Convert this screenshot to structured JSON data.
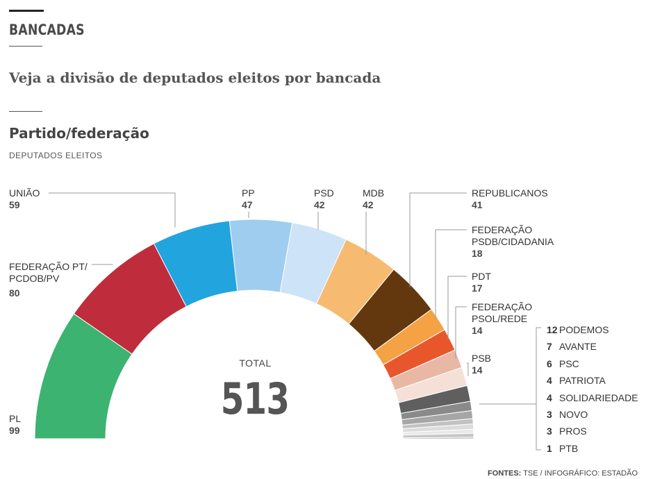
{
  "header": {
    "section_title": "BANCADAS",
    "subtitle": "Veja a divisão de deputados eleitos por bancada",
    "chart_title": "Partido/federação",
    "chart_subtitle": "DEPUTADOS ELEITOS"
  },
  "chart_data": {
    "type": "semicircle-donut",
    "title": "Partido/federação",
    "subtitle": "DEPUTADOS ELEITOS",
    "total_label": "TOTAL",
    "total": "513",
    "parties": [
      {
        "name": "PL",
        "seats": 99,
        "label": "PL",
        "color": "#3cb371"
      },
      {
        "name": "FEDERAÇÃO PT/PCDOB/PV",
        "seats": 80,
        "label": "FEDERAÇÃO PT/ PCDOB/PV",
        "color": "#bf2c3c"
      },
      {
        "name": "UNIÃO",
        "seats": 59,
        "label": "UNIÃO",
        "color": "#22a4df"
      },
      {
        "name": "PP",
        "seats": 47,
        "label": "PP",
        "color": "#9fcdef"
      },
      {
        "name": "PSD",
        "seats": 42,
        "label": "PSD",
        "color": "#cde3f7"
      },
      {
        "name": "MDB",
        "seats": 42,
        "label": "MDB",
        "color": "#f6bb70"
      },
      {
        "name": "REPUBLICANOS",
        "seats": 41,
        "label": "REPUBLICANOS",
        "color": "#63380e"
      },
      {
        "name": "FEDERAÇÃO PSDB/CIDADANIA",
        "seats": 18,
        "label": "FEDERAÇÃO PSDB/CIDADANIA",
        "color": "#f4a244"
      },
      {
        "name": "PDT",
        "seats": 17,
        "label": "PDT",
        "color": "#e8572b"
      },
      {
        "name": "FEDERAÇÃO PSOL/REDE",
        "seats": 14,
        "label": "FEDERAÇÃO PSOL/REDE",
        "color": "#e8b8a5"
      },
      {
        "name": "PSB",
        "seats": 14,
        "label": "PSB",
        "color": "#f4e0d6"
      },
      {
        "name": "PODEMOS",
        "seats": 12,
        "label": "PODEMOS",
        "color": "#5f5f5f"
      },
      {
        "name": "AVANTE",
        "seats": 7,
        "label": "AVANTE",
        "color": "#8a8a8a"
      },
      {
        "name": "PSC",
        "seats": 6,
        "label": "PSC",
        "color": "#a6a6a6"
      },
      {
        "name": "PATRIOTA",
        "seats": 4,
        "label": "PATRIOTA",
        "color": "#c2c2c2"
      },
      {
        "name": "SOLIDARIEDADE",
        "seats": 4,
        "label": "SOLIDARIEDADE",
        "color": "#dcdcdc"
      },
      {
        "name": "NOVO",
        "seats": 3,
        "label": "NOVO",
        "color": "#e8e8e8"
      },
      {
        "name": "PROS",
        "seats": 3,
        "label": "PROS",
        "color": "#c6c6c6"
      },
      {
        "name": "PTB",
        "seats": 1,
        "label": "PTB",
        "color": "#8f8f8f"
      }
    ]
  },
  "footer": {
    "source_label": "FONTES:",
    "source_text": "TSE / INFOGRÁFICO: ESTADÃO"
  }
}
